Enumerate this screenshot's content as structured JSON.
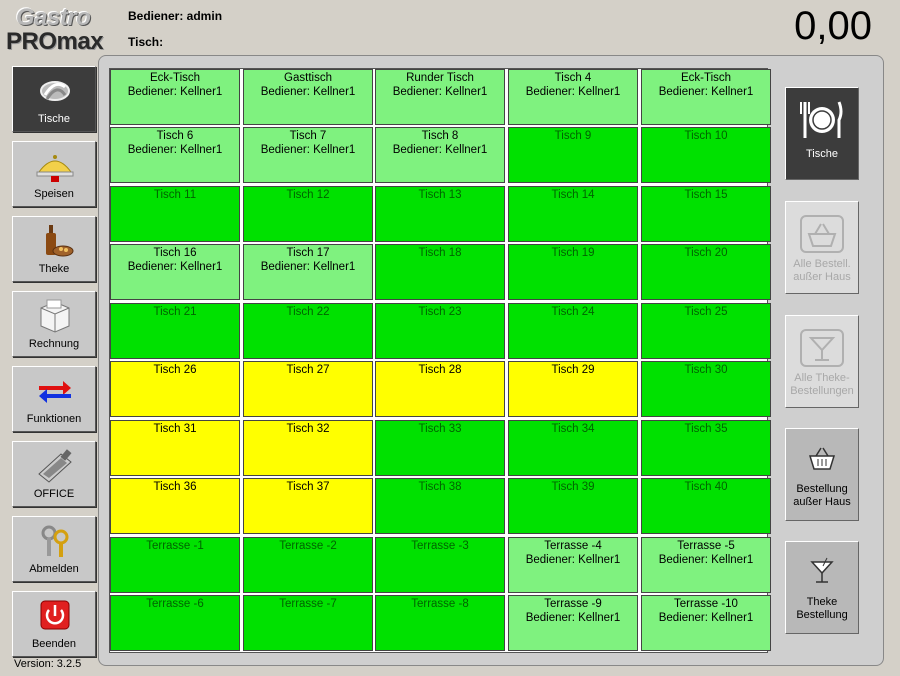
{
  "header": {
    "logo_line1": "Gastro",
    "logo_line2": "PROmax",
    "operator_label": "Bediener: admin",
    "table_label": "Tisch:",
    "total": "0,00"
  },
  "version": "Version: 3.2.5",
  "left_nav": [
    {
      "label": "Tische",
      "icon": "tables-icon",
      "active": true
    },
    {
      "label": "Speisen",
      "icon": "cloche-icon"
    },
    {
      "label": "Theke",
      "icon": "bar-counter-icon"
    },
    {
      "label": "Rechnung",
      "icon": "receipt-icon"
    },
    {
      "label": "Funktionen",
      "icon": "arrows-icon"
    },
    {
      "label": "OFFICE",
      "icon": "office-icon"
    },
    {
      "label": "Abmelden",
      "icon": "keys-icon"
    },
    {
      "label": "Beenden",
      "icon": "power-icon"
    }
  ],
  "tables": [
    [
      "Eck-Tisch",
      "Bediener: Kellner1",
      "taken"
    ],
    [
      "Gasttisch",
      "Bediener: Kellner1",
      "taken"
    ],
    [
      "Runder Tisch",
      "Bediener: Kellner1",
      "taken"
    ],
    [
      "Tisch 4",
      "Bediener: Kellner1",
      "taken"
    ],
    [
      "Eck-Tisch",
      "Bediener: Kellner1",
      "taken"
    ],
    [
      "Tisch 6",
      "Bediener: Kellner1",
      "taken"
    ],
    [
      "Tisch 7",
      "Bediener: Kellner1",
      "taken"
    ],
    [
      "Tisch 8",
      "Bediener: Kellner1",
      "taken"
    ],
    [
      "Tisch 9",
      "",
      "free"
    ],
    [
      "Tisch 10",
      "",
      "free"
    ],
    [
      "Tisch 11",
      "",
      "free"
    ],
    [
      "Tisch 12",
      "",
      "free"
    ],
    [
      "Tisch 13",
      "",
      "free"
    ],
    [
      "Tisch 14",
      "",
      "free"
    ],
    [
      "Tisch 15",
      "",
      "free"
    ],
    [
      "Tisch 16",
      "Bediener: Kellner1",
      "taken"
    ],
    [
      "Tisch 17",
      "Bediener: Kellner1",
      "taken"
    ],
    [
      "Tisch 18",
      "",
      "free"
    ],
    [
      "Tisch 19",
      "",
      "free"
    ],
    [
      "Tisch 20",
      "",
      "free"
    ],
    [
      "Tisch 21",
      "",
      "free"
    ],
    [
      "Tisch 22",
      "",
      "free"
    ],
    [
      "Tisch 23",
      "",
      "free"
    ],
    [
      "Tisch 24",
      "",
      "free"
    ],
    [
      "Tisch 25",
      "",
      "free"
    ],
    [
      "Tisch 26",
      "",
      "busy"
    ],
    [
      "Tisch 27",
      "",
      "busy"
    ],
    [
      "Tisch 28",
      "",
      "busy"
    ],
    [
      "Tisch 29",
      "",
      "busy"
    ],
    [
      "Tisch 30",
      "",
      "free"
    ],
    [
      "Tisch 31",
      "",
      "busy"
    ],
    [
      "Tisch 32",
      "",
      "busy"
    ],
    [
      "Tisch 33",
      "",
      "free"
    ],
    [
      "Tisch 34",
      "",
      "free"
    ],
    [
      "Tisch 35",
      "",
      "free"
    ],
    [
      "Tisch 36",
      "",
      "busy"
    ],
    [
      "Tisch 37",
      "",
      "busy"
    ],
    [
      "Tisch 38",
      "",
      "free"
    ],
    [
      "Tisch 39",
      "",
      "free"
    ],
    [
      "Tisch 40",
      "",
      "free"
    ],
    [
      "Terrasse -1",
      "",
      "free"
    ],
    [
      "Terrasse -2",
      "",
      "free"
    ],
    [
      "Terrasse -3",
      "",
      "free"
    ],
    [
      "Terrasse -4",
      "Bediener: Kellner1",
      "taken"
    ],
    [
      "Terrasse -5",
      "Bediener: Kellner1",
      "taken"
    ],
    [
      "Terrasse -6",
      "",
      "free"
    ],
    [
      "Terrasse -7",
      "",
      "free"
    ],
    [
      "Terrasse -8",
      "",
      "free"
    ],
    [
      "Terrasse -9",
      "Bediener: Kellner1",
      "taken"
    ],
    [
      "Terrasse -10",
      "Bediener: Kellner1",
      "taken"
    ]
  ],
  "right_buttons": [
    {
      "label": "Tische",
      "icon": "plate-cutlery-icon",
      "state": "active"
    },
    {
      "label": "Alle Bestell. außer Haus",
      "icon": "basket-folder-icon",
      "state": "disabled"
    },
    {
      "label": "Alle Theke-Bestellungen",
      "icon": "cocktail-folder-icon",
      "state": "disabled"
    },
    {
      "label": "Bestellung außer Haus",
      "icon": "basket-icon",
      "state": "normal"
    },
    {
      "label": "Theke Bestellung",
      "icon": "cocktail-icon",
      "state": "normal"
    }
  ],
  "colors": {
    "free": "#00e100",
    "taken": "#7ff27f",
    "busy": "#ffff00"
  }
}
